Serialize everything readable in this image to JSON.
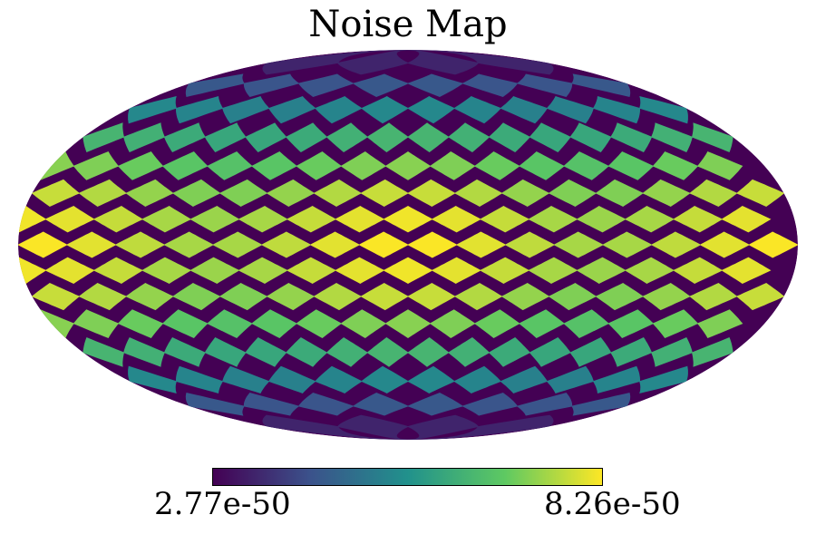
{
  "chart_data": {
    "type": "heatmap",
    "title": "Noise Map",
    "projection": "mollweide",
    "pixelization": "healpix",
    "nside": 4,
    "colormap": "viridis",
    "colorbar": {
      "orientation": "horizontal",
      "min_label": "2.77e-50",
      "max_label": "8.26e-50",
      "min": 2.77e-50,
      "max": 8.26e-50
    },
    "pattern": "minimum near poles, maximum along equator, symmetric about equator",
    "colors": [
      "#440154",
      "#3b528b",
      "#21918c",
      "#5ec962",
      "#fde725"
    ]
  }
}
